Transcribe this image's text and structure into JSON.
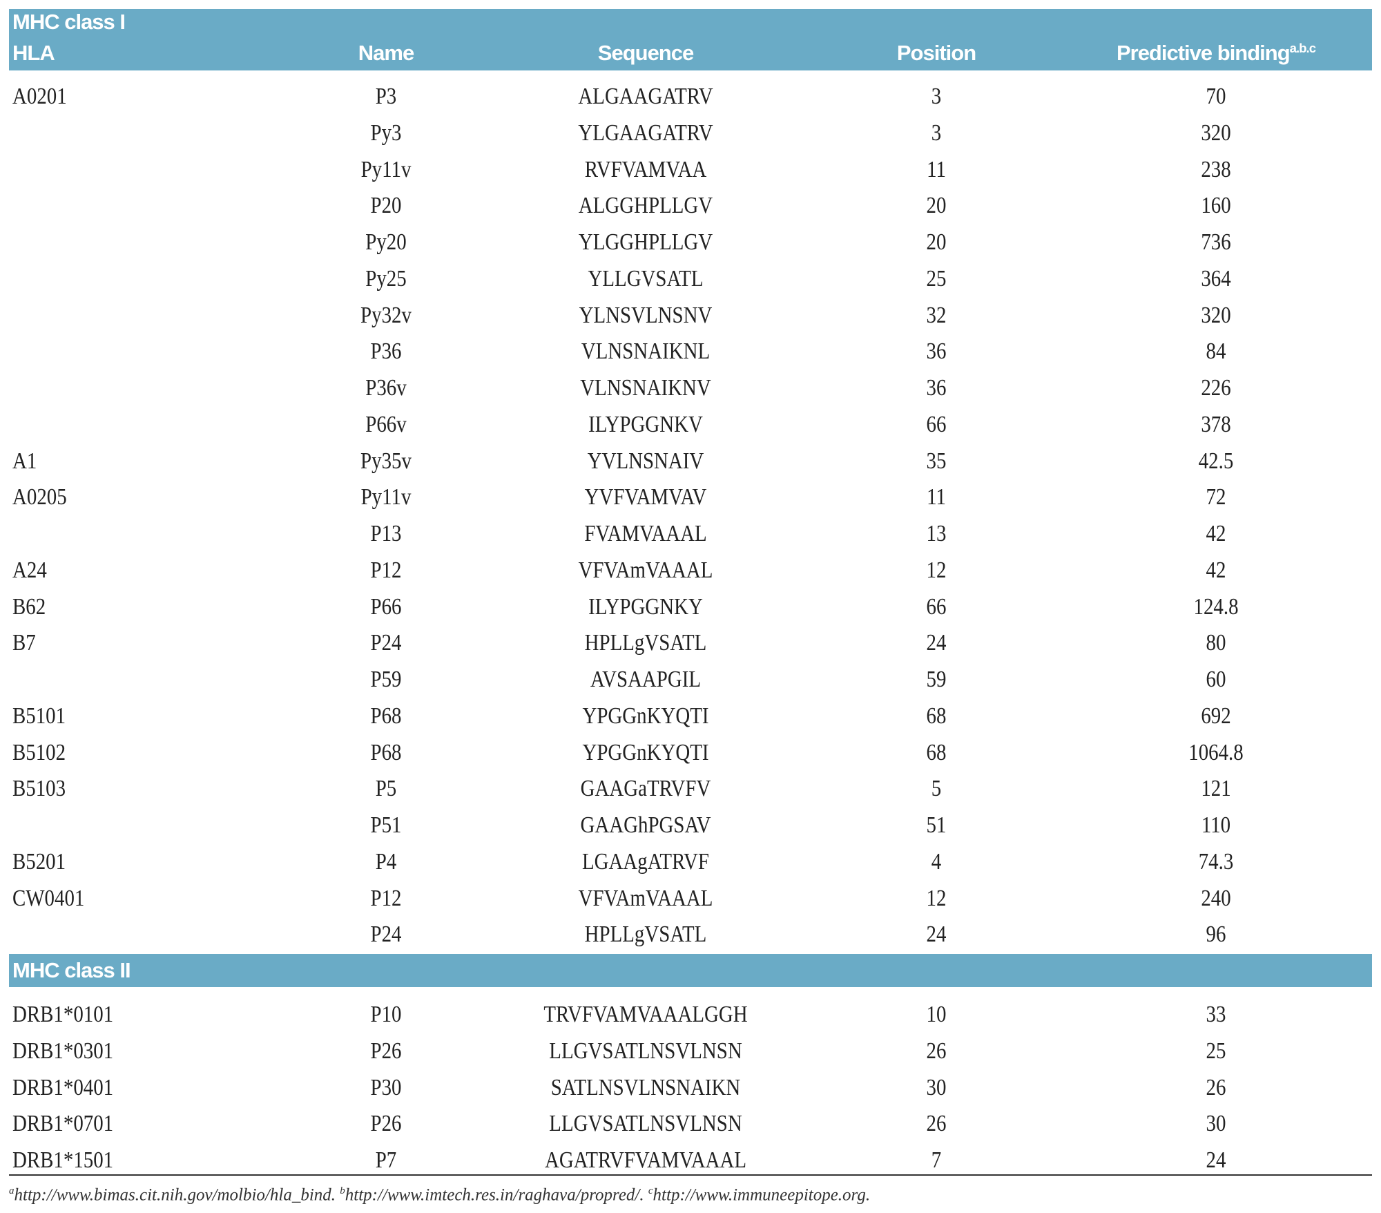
{
  "table": {
    "columns": [
      "HLA",
      "Name",
      "Sequence",
      "Position",
      "Predictive binding"
    ],
    "binding_superscript": "a.b.c",
    "sections": [
      {
        "title": "MHC class I",
        "rows": [
          [
            "A0201",
            "P3",
            "ALGAAGATRV",
            3,
            70
          ],
          [
            null,
            "Py3",
            "YLGAAGATRV",
            3,
            320
          ],
          [
            null,
            "Py11v",
            "RVFVAMVAA",
            11,
            238
          ],
          [
            null,
            "P20",
            "ALGGHPLLGV",
            20,
            160
          ],
          [
            null,
            "Py20",
            "YLGGHPLLGV",
            20,
            736
          ],
          [
            null,
            "Py25",
            "YLLGVSATL",
            25,
            364
          ],
          [
            null,
            "Py32v",
            "YLNSVLNSNV",
            32,
            320
          ],
          [
            null,
            "P36",
            "VLNSNAIKNL",
            36,
            84
          ],
          [
            null,
            "P36v",
            "VLNSNAIKNV",
            36,
            226
          ],
          [
            null,
            "P66v",
            "ILYPGGNKV",
            66,
            378
          ],
          [
            "A1",
            "Py35v",
            "YVLNSNAIV",
            35,
            42.5
          ],
          [
            "A0205",
            "Py11v",
            "YVFVAMVAV",
            11,
            72
          ],
          [
            null,
            "P13",
            "FVAMVAAAL",
            13,
            42
          ],
          [
            "A24",
            "P12",
            "VFVAmVAAAL",
            12,
            42
          ],
          [
            "B62",
            "P66",
            "ILYPGGNKY",
            66,
            124.8
          ],
          [
            "B7",
            "P24",
            "HPLLgVSATL",
            24,
            80
          ],
          [
            null,
            "P59",
            "AVSAAPGIL",
            59,
            60
          ],
          [
            "B5101",
            "P68",
            "YPGGnKYQTI",
            68,
            692
          ],
          [
            "B5102",
            "P68",
            "YPGGnKYQTI",
            68,
            1064.8
          ],
          [
            "B5103",
            "P5",
            "GAAGaTRVFV",
            5,
            121
          ],
          [
            null,
            "P51",
            "GAAGhPGSAV",
            51,
            110
          ],
          [
            "B5201",
            "P4",
            "LGAAgATRVF",
            4,
            74.3
          ],
          [
            "CW0401",
            "P12",
            "VFVAmVAAAL",
            12,
            240
          ],
          [
            null,
            "P24",
            "HPLLgVSATL",
            24,
            96
          ]
        ]
      },
      {
        "title": "MHC class II",
        "rows": [
          [
            "DRB1*0101",
            "P10",
            "TRVFVAMVAAALGGH",
            10,
            33
          ],
          [
            "DRB1*0301",
            "P26",
            "LLGVSATLNSVLNSN",
            26,
            25
          ],
          [
            "DRB1*0401",
            "P30",
            "SATLNSVLNSNAIKN",
            30,
            26
          ],
          [
            "DRB1*0701",
            "P26",
            "LLGVSATLNSVLNSN",
            26,
            30
          ],
          [
            "DRB1*1501",
            "P7",
            "AGATRVFVAMVAAAL",
            7,
            24
          ]
        ]
      }
    ],
    "footnotes": [
      {
        "mark": "a",
        "text": "http://www.bimas.cit.nih.gov/molbio/hla_bind."
      },
      {
        "mark": "b",
        "text": "http://www.imtech.res.in/raghava/propred/."
      },
      {
        "mark": "c",
        "text": "http://www.immuneepitope.org."
      }
    ]
  }
}
